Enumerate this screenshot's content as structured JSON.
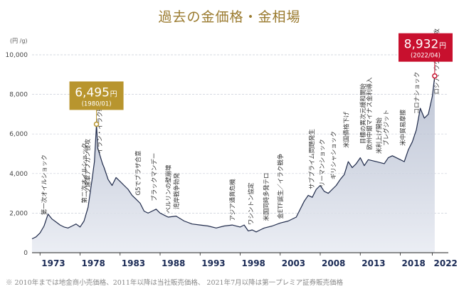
{
  "chart_data": {
    "type": "area",
    "title": "過去の金価格・金相場",
    "ylabel": "(円 /g)",
    "ylim": [
      0,
      10000
    ],
    "xlim": [
      1972,
      2024
    ],
    "y_ticks": [
      "0",
      "2,000",
      "4,000",
      "6,000",
      "8,000",
      "10,000"
    ],
    "y_tick_values": [
      0,
      2000,
      4000,
      6000,
      8000,
      10000
    ],
    "x_ticks": [
      "1973",
      "1978",
      "1983",
      "1988",
      "1993",
      "1998",
      "2003",
      "2008",
      "2013",
      "2018",
      "2022"
    ],
    "x_tick_values": [
      1973,
      1978,
      1983,
      1988,
      1993,
      1998,
      2003,
      2008,
      2013,
      2018,
      2022
    ],
    "grid": true,
    "series": [
      {
        "x": [
          1972.0,
          1972.5,
          1973.0,
          1973.5,
          1974.0,
          1974.5,
          1975.0,
          1975.5,
          1976.0,
          1976.5,
          1977.0,
          1977.5,
          1978.0,
          1978.5,
          1979.0,
          1979.5,
          1979.8,
          1980.05,
          1980.2,
          1980.5,
          1980.8,
          1981.0,
          1981.5,
          1982.0,
          1982.5,
          1983.0,
          1983.5,
          1984.0,
          1984.5,
          1985.0,
          1985.5,
          1986.0,
          1986.5,
          1987.0,
          1987.5,
          1988.0,
          1988.5,
          1989.0,
          1990.0,
          1991.0,
          1992.0,
          1993.0,
          1994.0,
          1995.0,
          1996.0,
          1997.0,
          1998.0,
          1998.5,
          1999.0,
          1999.5,
          2000.0,
          2000.5,
          2001.0,
          2002.0,
          2003.0,
          2004.0,
          2005.0,
          2006.0,
          2006.5,
          2007.0,
          2007.5,
          2008.0,
          2008.5,
          2009.0,
          2009.5,
          2010.0,
          2010.5,
          2011.0,
          2011.5,
          2012.0,
          2012.5,
          2013.0,
          2013.5,
          2014.0,
          2015.0,
          2016.0,
          2016.5,
          2017.0,
          2018.0,
          2018.5,
          2019.0,
          2019.5,
          2020.0,
          2020.5,
          2021.0,
          2021.5,
          2022.0,
          2022.3
        ],
        "values": [
          700,
          800,
          1000,
          1350,
          1950,
          1700,
          1550,
          1400,
          1300,
          1250,
          1350,
          1450,
          1300,
          1600,
          2300,
          3700,
          4600,
          6495,
          5300,
          4900,
          4500,
          4300,
          3700,
          3400,
          3800,
          3600,
          3400,
          3200,
          2900,
          2700,
          2500,
          2100,
          2000,
          2100,
          2200,
          2000,
          1900,
          1800,
          1850,
          1600,
          1450,
          1400,
          1350,
          1250,
          1350,
          1400,
          1300,
          1400,
          1100,
          1150,
          1050,
          1150,
          1250,
          1350,
          1500,
          1600,
          1800,
          2600,
          2900,
          2800,
          3200,
          3400,
          3100,
          3000,
          3200,
          3400,
          3700,
          3950,
          4600,
          4300,
          4500,
          4800,
          4400,
          4700,
          4600,
          4500,
          4800,
          4900,
          4700,
          4600,
          5200,
          5600,
          6200,
          7300,
          6800,
          7000,
          7900,
          8932
        ]
      }
    ],
    "highlights": [
      {
        "x": 1980.05,
        "value": 6495,
        "label": "6,495",
        "unit": "円",
        "date": "(1980/01)",
        "color": "#b8952e"
      },
      {
        "x": 2022.3,
        "value": 8932,
        "label": "8,932",
        "unit": "円",
        "date": "(2022/04)",
        "color": "#c8102e"
      }
    ],
    "annotations": [
      {
        "text": "第一次オイルショック",
        "x": 1973.8,
        "value": 1900
      },
      {
        "text": "ソ連軍アフガン侵攻",
        "x": 1979.2,
        "value": 3000
      },
      {
        "text": "第二次オイルショック",
        "x": 1978.8,
        "value": 2500
      },
      {
        "text": "イラン・イラク戦争",
        "x": 1980.7,
        "value": 5000
      },
      {
        "text": "G5でプラザ合意",
        "x": 1985.5,
        "value": 2900
      },
      {
        "text": "ブラックマンデー",
        "x": 1987.5,
        "value": 2600
      },
      {
        "text": "ベルリンの壁崩壊",
        "x": 1989.3,
        "value": 2000
      },
      {
        "text": "湾岸戦争勃発",
        "x": 1990.3,
        "value": 2200
      },
      {
        "text": "アジア通貨危機",
        "x": 1997.3,
        "value": 1600
      },
      {
        "text": "ワシントン協定",
        "x": 1999.6,
        "value": 1400
      },
      {
        "text": "米国同時多発テロ",
        "x": 2001.5,
        "value": 1600
      },
      {
        "text": "金ETF誕生／イラク戦争",
        "x": 2003.3,
        "value": 1700
      },
      {
        "text": "サブプライム問題発生",
        "x": 2007.2,
        "value": 3200
      },
      {
        "text": "リーマンショック",
        "x": 2008.5,
        "value": 3300
      },
      {
        "text": "ギリシャショック",
        "x": 2009.9,
        "value": 3700
      },
      {
        "text": "米国債格下げ",
        "x": 2011.5,
        "value": 5300
      },
      {
        "text": "目標の異次元緩和開始",
        "x": 2013.6,
        "value": 5500
      },
      {
        "text": "欧州中銀マイナス金利導入",
        "x": 2014.4,
        "value": 5200
      },
      {
        "text": "ブレグジット",
        "x": 2016.5,
        "value": 5400
      },
      {
        "text": "米利上げ開始",
        "x": 2015.6,
        "value": 5000
      },
      {
        "text": "米中貿易摩擦",
        "x": 2018.6,
        "value": 5400
      },
      {
        "text": "コロナショック",
        "x": 2020.3,
        "value": 7000
      },
      {
        "text": "ロシア、ウクライナ侵攻",
        "x": 2022.8,
        "value": 8000
      }
    ]
  },
  "footnote": "※ 2010年までは地金商小売価格、2011年以降は当社販売価格、 2021年7月以降は第一プレミア証券販売価格"
}
